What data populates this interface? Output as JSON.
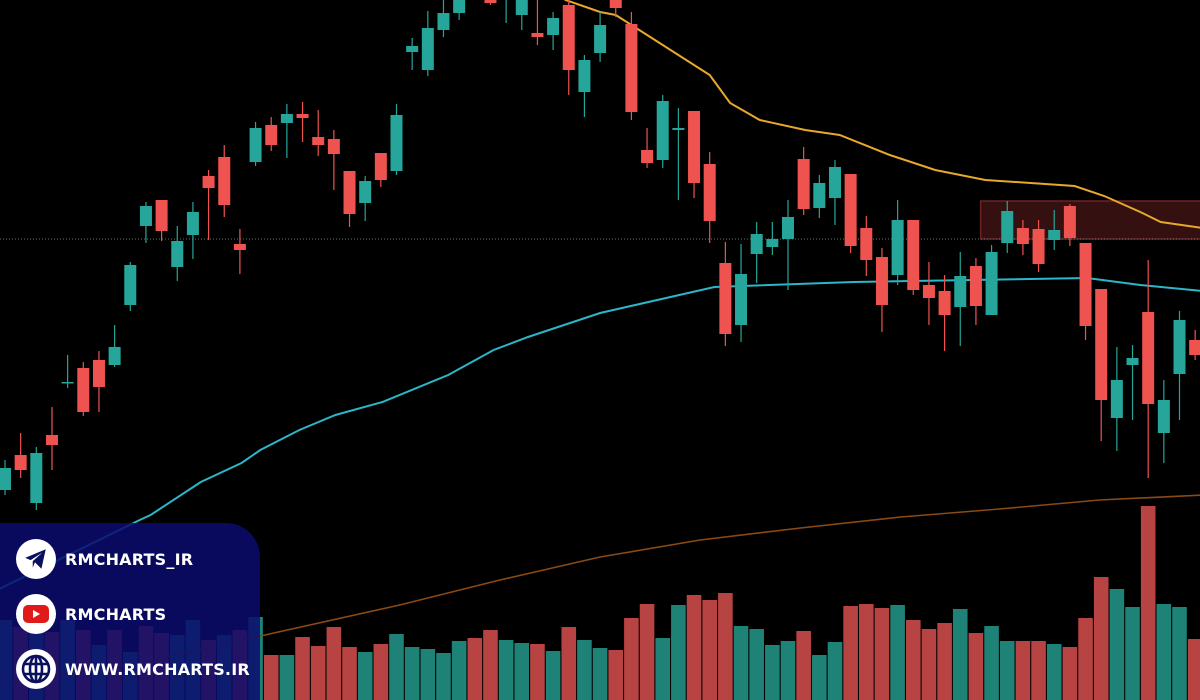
{
  "chart_data": {
    "type": "candlestick",
    "colors": {
      "up": "#26a69a",
      "down": "#ef5350",
      "volume_up": "#1f8276",
      "volume_down": "#b84343",
      "ma_fast": "#e8a82a",
      "ma_mid": "#2bb6c9",
      "ma_slow": "#8a4a14",
      "zone": "#3a1212",
      "zone_border": "#6a2222",
      "price_line": "#5a7a78"
    },
    "candles": [
      [
        210,
        240,
        205,
        232
      ],
      [
        245,
        267,
        222,
        230
      ],
      [
        197,
        253,
        190,
        247
      ],
      [
        265,
        293,
        230,
        255
      ],
      [
        317,
        345,
        312,
        318
      ],
      [
        332,
        338,
        284,
        288
      ],
      [
        340,
        349,
        288,
        313
      ],
      [
        335,
        375,
        333,
        353
      ],
      [
        395,
        438,
        389,
        435
      ],
      [
        474,
        498,
        457,
        494
      ],
      [
        500,
        500,
        459,
        469
      ],
      [
        433,
        474,
        419,
        459
      ],
      [
        465,
        498,
        441,
        488
      ],
      [
        524,
        530,
        460,
        512
      ],
      [
        543,
        555,
        483,
        495
      ],
      [
        456,
        471,
        426,
        450
      ],
      [
        538,
        578,
        534,
        572
      ],
      [
        575,
        583,
        549,
        555
      ],
      [
        577,
        596,
        542,
        586
      ],
      [
        586,
        598,
        558,
        582
      ],
      [
        563,
        590,
        544,
        555
      ],
      [
        561,
        570,
        510,
        546
      ],
      [
        529,
        529,
        473,
        486
      ],
      [
        497,
        524,
        479,
        519
      ],
      [
        547,
        547,
        513,
        520
      ],
      [
        529,
        596,
        525,
        585
      ],
      [
        648,
        662,
        630,
        654
      ],
      [
        630,
        689,
        624,
        672
      ],
      [
        670,
        700,
        663,
        687
      ],
      [
        687,
        712,
        680,
        705
      ],
      [
        730,
        740,
        705,
        715
      ],
      [
        705,
        712,
        695,
        697
      ],
      [
        712,
        740,
        677,
        730
      ],
      [
        685,
        715,
        670,
        705
      ],
      [
        667,
        705,
        655,
        663
      ],
      [
        665,
        688,
        650,
        682
      ],
      [
        695,
        710,
        605,
        630
      ],
      [
        608,
        645,
        583,
        640
      ],
      [
        647,
        688,
        638,
        675
      ],
      [
        705,
        712,
        683,
        692
      ],
      [
        676,
        688,
        580,
        588
      ],
      [
        550,
        572,
        532,
        537
      ],
      [
        540,
        605,
        532,
        599
      ],
      [
        570,
        592,
        500,
        572
      ],
      [
        589,
        589,
        502,
        517
      ],
      [
        536,
        548,
        457,
        479
      ],
      [
        437,
        458,
        354,
        366
      ],
      [
        375,
        456,
        358,
        426
      ],
      [
        446,
        478,
        417,
        466
      ],
      [
        453,
        478,
        445,
        461
      ],
      [
        461,
        500,
        410,
        483
      ],
      [
        541,
        553,
        485,
        491
      ],
      [
        492,
        525,
        482,
        517
      ],
      [
        502,
        540,
        475,
        533
      ],
      [
        526,
        526,
        447,
        454
      ],
      [
        472,
        484,
        424,
        440
      ],
      [
        443,
        452,
        368,
        395
      ],
      [
        425,
        500,
        415,
        480
      ],
      [
        480,
        480,
        405,
        410
      ],
      [
        415,
        438,
        375,
        402
      ],
      [
        409,
        425,
        349,
        385
      ],
      [
        393,
        448,
        354,
        424
      ],
      [
        434,
        442,
        375,
        394
      ],
      [
        385,
        455,
        385,
        448
      ],
      [
        457,
        499,
        447,
        489
      ],
      [
        472,
        480,
        445,
        456
      ],
      [
        471,
        480,
        428,
        436
      ],
      [
        460,
        490,
        450,
        470
      ],
      [
        494,
        496,
        454,
        462
      ],
      [
        457,
        457,
        360,
        374
      ],
      [
        411,
        411,
        259,
        300
      ],
      [
        282,
        353,
        249,
        320
      ],
      [
        335,
        355,
        280,
        342
      ],
      [
        388,
        440,
        222,
        296
      ],
      [
        267,
        320,
        237,
        300
      ],
      [
        326,
        389,
        280,
        380
      ],
      [
        360,
        370,
        340,
        345
      ]
    ],
    "volume": [
      [
        80,
        "up"
      ],
      [
        73,
        "down"
      ],
      [
        80,
        "up"
      ],
      [
        68,
        "down"
      ],
      [
        80,
        "up"
      ],
      [
        70,
        "down"
      ],
      [
        55,
        "up"
      ],
      [
        70,
        "down"
      ],
      [
        48,
        "up"
      ],
      [
        74,
        "down"
      ],
      [
        67,
        "down"
      ],
      [
        65,
        "up"
      ],
      [
        80,
        "up"
      ],
      [
        60,
        "down"
      ],
      [
        65,
        "up"
      ],
      [
        70,
        "down"
      ],
      [
        83,
        "up"
      ],
      [
        45,
        "down"
      ],
      [
        45,
        "up"
      ],
      [
        63,
        "down"
      ],
      [
        54,
        "down"
      ],
      [
        73,
        "down"
      ],
      [
        53,
        "down"
      ],
      [
        48,
        "up"
      ],
      [
        56,
        "down"
      ],
      [
        66,
        "up"
      ],
      [
        53,
        "up"
      ],
      [
        51,
        "up"
      ],
      [
        47,
        "up"
      ],
      [
        59,
        "up"
      ],
      [
        62,
        "down"
      ],
      [
        70,
        "down"
      ],
      [
        60,
        "up"
      ],
      [
        57,
        "up"
      ],
      [
        56,
        "down"
      ],
      [
        49,
        "up"
      ],
      [
        73,
        "down"
      ],
      [
        60,
        "up"
      ],
      [
        52,
        "up"
      ],
      [
        50,
        "down"
      ],
      [
        82,
        "down"
      ],
      [
        96,
        "down"
      ],
      [
        62,
        "up"
      ],
      [
        95,
        "up"
      ],
      [
        105,
        "down"
      ],
      [
        100,
        "down"
      ],
      [
        107,
        "down"
      ],
      [
        74,
        "up"
      ],
      [
        71,
        "up"
      ],
      [
        55,
        "up"
      ],
      [
        59,
        "up"
      ],
      [
        69,
        "down"
      ],
      [
        45,
        "up"
      ],
      [
        58,
        "up"
      ],
      [
        94,
        "down"
      ],
      [
        96,
        "down"
      ],
      [
        92,
        "down"
      ],
      [
        95,
        "up"
      ],
      [
        80,
        "down"
      ],
      [
        71,
        "down"
      ],
      [
        77,
        "down"
      ],
      [
        91,
        "up"
      ],
      [
        67,
        "down"
      ],
      [
        74,
        "up"
      ],
      [
        59,
        "up"
      ],
      [
        59,
        "down"
      ],
      [
        59,
        "down"
      ],
      [
        56,
        "up"
      ],
      [
        53,
        "down"
      ],
      [
        82,
        "down"
      ],
      [
        123,
        "down"
      ],
      [
        111,
        "up"
      ],
      [
        93,
        "up"
      ],
      [
        194,
        "down"
      ],
      [
        96,
        "up"
      ],
      [
        93,
        "up"
      ],
      [
        61,
        "down"
      ]
    ],
    "moving_averages": [
      {
        "key": "ma_fast",
        "points": [
          [
            34.8,
            710
          ],
          [
            35.8,
            700
          ],
          [
            38,
            688
          ],
          [
            39,
            685
          ],
          [
            41.5,
            660
          ],
          [
            45,
            625
          ],
          [
            46.3,
            597
          ],
          [
            48.2,
            580
          ],
          [
            51.1,
            570
          ],
          [
            53.3,
            565
          ],
          [
            56.5,
            545
          ],
          [
            59.4,
            530
          ],
          [
            62.6,
            520
          ],
          [
            65.5,
            517
          ],
          [
            68.3,
            514
          ],
          [
            70.2,
            504
          ],
          [
            72.5,
            488
          ],
          [
            73.8,
            478
          ],
          [
            76.5,
            472
          ]
        ]
      },
      {
        "key": "ma_mid",
        "points": [
          [
            -0.5,
            110
          ],
          [
            8.6,
            180
          ],
          [
            9.3,
            185
          ],
          [
            12.5,
            218
          ],
          [
            15.1,
            237
          ],
          [
            16.3,
            250
          ],
          [
            18.8,
            270
          ],
          [
            21.1,
            285
          ],
          [
            24.1,
            298
          ],
          [
            28.3,
            325
          ],
          [
            31.2,
            350
          ],
          [
            33.4,
            363
          ],
          [
            38,
            387
          ],
          [
            45.3,
            413
          ],
          [
            54.2,
            418
          ],
          [
            69.1,
            422
          ],
          [
            72.5,
            415
          ],
          [
            76.5,
            409
          ]
        ]
      },
      {
        "key": "ma_slow",
        "points": [
          [
            -0.5,
            17
          ],
          [
            8,
            35
          ],
          [
            16.3,
            64
          ],
          [
            25.2,
            95
          ],
          [
            31.6,
            120
          ],
          [
            38,
            143
          ],
          [
            44.4,
            160
          ],
          [
            50.8,
            172
          ],
          [
            57.2,
            183
          ],
          [
            63.5,
            191
          ],
          [
            69.9,
            200
          ],
          [
            76.5,
            205
          ]
        ]
      }
    ],
    "zone": {
      "from_index": 62.3,
      "price_low": 461,
      "price_high": 499
    },
    "price_line": 461
  },
  "social": {
    "telegram": {
      "label": "RMCHARTS_IR",
      "icon": "telegram-icon"
    },
    "youtube": {
      "label": "RMCHARTS",
      "icon": "youtube-icon"
    },
    "website": {
      "label": "WWW.RMCHARTS.IR",
      "icon": "globe-icon"
    }
  }
}
